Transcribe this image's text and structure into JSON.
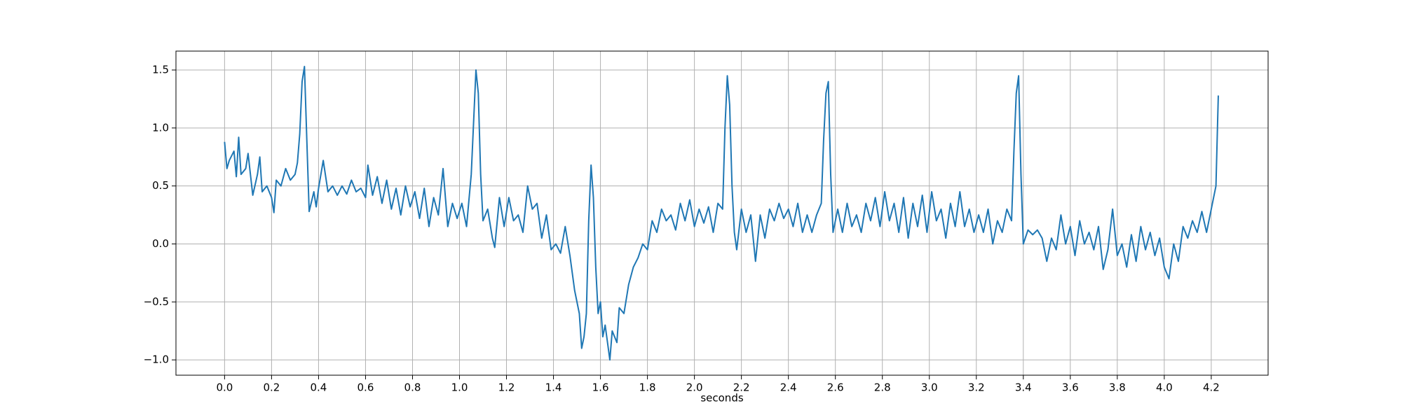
{
  "chart_data": {
    "type": "line",
    "xlabel": "seconds",
    "color": "#1f77b4",
    "grid": true,
    "xlim": [
      -0.207,
      4.442
    ],
    "ylim": [
      -1.132,
      1.663
    ],
    "xticks": [
      {
        "value": 0,
        "label": "0.0"
      },
      0.2,
      0.4,
      0.6,
      0.8,
      {
        "value": 1,
        "label": "1.0"
      },
      1.2,
      1.4,
      1.6,
      1.8,
      {
        "value": 2,
        "label": "2.0"
      },
      2.2,
      2.4,
      2.6,
      2.8,
      {
        "value": 3,
        "label": "3.0"
      },
      3.2,
      3.4,
      3.6,
      3.8,
      {
        "value": 4,
        "label": "4.0"
      },
      4.2
    ],
    "yticks": [
      {
        "value": -1,
        "label": "−1.0"
      },
      {
        "value": -0.5,
        "label": "−0.5"
      },
      {
        "value": 0,
        "label": "0.0"
      },
      0.5,
      {
        "value": 1,
        "label": "1.0"
      },
      1.5
    ],
    "x": [
      0,
      0.01,
      0.02,
      0.04,
      0.05,
      0.06,
      0.07,
      0.09,
      0.1,
      0.12,
      0.14,
      0.15,
      0.16,
      0.18,
      0.2,
      0.21,
      0.22,
      0.24,
      0.26,
      0.28,
      0.3,
      0.31,
      0.32,
      0.33,
      0.34,
      0.35,
      0.36,
      0.38,
      0.39,
      0.4,
      0.42,
      0.44,
      0.46,
      0.48,
      0.5,
      0.52,
      0.54,
      0.56,
      0.58,
      0.6,
      0.61,
      0.63,
      0.65,
      0.67,
      0.69,
      0.71,
      0.73,
      0.75,
      0.77,
      0.79,
      0.81,
      0.83,
      0.85,
      0.87,
      0.89,
      0.91,
      0.93,
      0.95,
      0.97,
      0.99,
      1.01,
      1.03,
      1.05,
      1.07,
      1.08,
      1.09,
      1.1,
      1.12,
      1.14,
      1.15,
      1.17,
      1.19,
      1.21,
      1.23,
      1.25,
      1.27,
      1.29,
      1.31,
      1.33,
      1.35,
      1.37,
      1.39,
      1.41,
      1.43,
      1.45,
      1.47,
      1.49,
      1.51,
      1.52,
      1.53,
      1.54,
      1.55,
      1.56,
      1.57,
      1.58,
      1.59,
      1.6,
      1.61,
      1.62,
      1.63,
      1.64,
      1.65,
      1.67,
      1.68,
      1.7,
      1.72,
      1.74,
      1.76,
      1.78,
      1.8,
      1.82,
      1.84,
      1.86,
      1.88,
      1.9,
      1.92,
      1.94,
      1.96,
      1.98,
      2,
      2.02,
      2.04,
      2.06,
      2.08,
      2.1,
      2.12,
      2.13,
      2.14,
      2.15,
      2.16,
      2.17,
      2.18,
      2.2,
      2.22,
      2.24,
      2.26,
      2.28,
      2.3,
      2.32,
      2.34,
      2.36,
      2.38,
      2.4,
      2.42,
      2.44,
      2.46,
      2.48,
      2.5,
      2.52,
      2.54,
      2.55,
      2.56,
      2.57,
      2.58,
      2.59,
      2.61,
      2.63,
      2.65,
      2.67,
      2.69,
      2.71,
      2.73,
      2.75,
      2.77,
      2.79,
      2.81,
      2.83,
      2.85,
      2.87,
      2.89,
      2.91,
      2.93,
      2.95,
      2.97,
      2.99,
      3.01,
      3.03,
      3.05,
      3.07,
      3.09,
      3.11,
      3.13,
      3.15,
      3.17,
      3.19,
      3.21,
      3.23,
      3.25,
      3.27,
      3.29,
      3.31,
      3.33,
      3.35,
      3.36,
      3.37,
      3.38,
      3.39,
      3.4,
      3.42,
      3.44,
      3.46,
      3.48,
      3.5,
      3.52,
      3.54,
      3.56,
      3.58,
      3.6,
      3.62,
      3.64,
      3.66,
      3.68,
      3.7,
      3.72,
      3.74,
      3.76,
      3.78,
      3.8,
      3.82,
      3.84,
      3.86,
      3.88,
      3.9,
      3.92,
      3.94,
      3.96,
      3.98,
      4,
      4.02,
      4.04,
      4.06,
      4.08,
      4.1,
      4.12,
      4.14,
      4.16,
      4.18,
      4.2,
      4.21,
      4.22,
      4.23
    ],
    "values": [
      0.88,
      0.65,
      0.72,
      0.8,
      0.58,
      0.92,
      0.6,
      0.65,
      0.78,
      0.42,
      0.6,
      0.75,
      0.45,
      0.5,
      0.4,
      0.27,
      0.55,
      0.5,
      0.65,
      0.55,
      0.6,
      0.7,
      0.95,
      1.4,
      1.53,
      0.9,
      0.28,
      0.45,
      0.32,
      0.48,
      0.72,
      0.45,
      0.5,
      0.42,
      0.5,
      0.43,
      0.55,
      0.45,
      0.48,
      0.4,
      0.68,
      0.42,
      0.58,
      0.35,
      0.55,
      0.3,
      0.48,
      0.25,
      0.5,
      0.32,
      0.45,
      0.22,
      0.48,
      0.15,
      0.4,
      0.25,
      0.65,
      0.15,
      0.35,
      0.22,
      0.35,
      0.15,
      0.6,
      1.5,
      1.3,
      0.6,
      0.2,
      0.3,
      0.05,
      -0.03,
      0.4,
      0.15,
      0.4,
      0.2,
      0.25,
      0.1,
      0.5,
      0.3,
      0.35,
      0.05,
      0.25,
      -0.05,
      0,
      -0.08,
      0.15,
      -0.1,
      -0.4,
      -0.6,
      -0.9,
      -0.8,
      -0.6,
      0.2,
      0.68,
      0.4,
      -0.2,
      -0.6,
      -0.5,
      -0.8,
      -0.7,
      -0.85,
      -1,
      -0.75,
      -0.85,
      -0.55,
      -0.6,
      -0.35,
      -0.2,
      -0.12,
      0,
      -0.05,
      0.2,
      0.1,
      0.3,
      0.2,
      0.25,
      0.12,
      0.35,
      0.2,
      0.38,
      0.15,
      0.3,
      0.18,
      0.32,
      0.1,
      0.35,
      0.3,
      1,
      1.45,
      1.2,
      0.5,
      0.1,
      -0.05,
      0.3,
      0.1,
      0.25,
      -0.15,
      0.25,
      0.05,
      0.3,
      0.2,
      0.35,
      0.22,
      0.3,
      0.15,
      0.35,
      0.1,
      0.25,
      0.1,
      0.25,
      0.35,
      0.9,
      1.3,
      1.4,
      0.6,
      0.1,
      0.3,
      0.1,
      0.35,
      0.15,
      0.25,
      0.1,
      0.35,
      0.2,
      0.4,
      0.15,
      0.45,
      0.2,
      0.35,
      0.1,
      0.4,
      0.05,
      0.35,
      0.15,
      0.42,
      0.1,
      0.45,
      0.2,
      0.3,
      0.05,
      0.35,
      0.15,
      0.45,
      0.15,
      0.3,
      0.1,
      0.25,
      0.1,
      0.3,
      0,
      0.2,
      0.1,
      0.3,
      0.2,
      0.8,
      1.3,
      1.45,
      0.6,
      0,
      0.12,
      0.08,
      0.12,
      0.05,
      -0.15,
      0.05,
      -0.05,
      0.25,
      0,
      0.15,
      -0.1,
      0.2,
      0,
      0.1,
      -0.05,
      0.15,
      -0.22,
      -0.05,
      0.3,
      -0.1,
      0,
      -0.2,
      0.08,
      -0.15,
      0.15,
      -0.05,
      0.1,
      -0.1,
      0.05,
      -0.2,
      -0.3,
      0,
      -0.15,
      0.15,
      0.05,
      0.2,
      0.1,
      0.28,
      0.1,
      0.3,
      0.4,
      0.5,
      1.28
    ]
  }
}
